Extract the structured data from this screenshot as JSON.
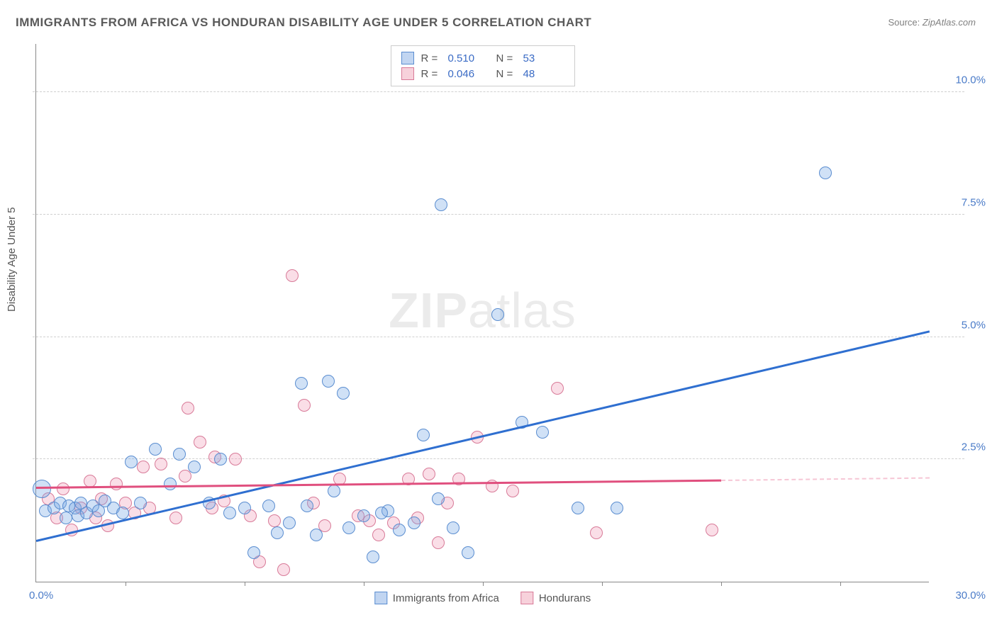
{
  "title": "IMMIGRANTS FROM AFRICA VS HONDURAN DISABILITY AGE UNDER 5 CORRELATION CHART",
  "source_prefix": "Source: ",
  "source_link": "ZipAtlas.com",
  "y_axis_label": "Disability Age Under 5",
  "watermark_bold": "ZIP",
  "watermark_rest": "atlas",
  "chart": {
    "type": "scatter",
    "xlim": [
      0,
      30
    ],
    "ylim": [
      0,
      11
    ],
    "background_color": "#ffffff",
    "grid_color": "#d0d0d0",
    "axis_color": "#888888",
    "y_ticks": [
      2.5,
      5.0,
      7.5,
      10.0
    ],
    "y_tick_labels": [
      "2.5%",
      "5.0%",
      "7.5%",
      "10.0%"
    ],
    "origin_label": "0.0%",
    "x_end_label": "30.0%",
    "x_tick_positions": [
      3,
      7,
      11,
      15,
      19,
      23,
      27
    ],
    "point_radius": 9,
    "point_radius_large": 13,
    "label_fontsize": 15,
    "title_fontsize": 17,
    "title_color": "#5a5a5a",
    "label_color": "#555555",
    "tick_label_color": "#4a7bc8"
  },
  "series": {
    "africa": {
      "label": "Immigrants from Africa",
      "color_fill": "rgba(120,170,230,0.35)",
      "color_stroke": "#5a8dd0",
      "R": "0.510",
      "N": "53",
      "trend": {
        "x1": 0,
        "y1": 0.82,
        "x2": 30,
        "y2": 5.1,
        "color": "#2f6fd0"
      },
      "points": [
        {
          "x": 0.2,
          "y": 1.9,
          "r": 13
        },
        {
          "x": 0.3,
          "y": 1.45
        },
        {
          "x": 0.6,
          "y": 1.5
        },
        {
          "x": 0.8,
          "y": 1.6
        },
        {
          "x": 1.0,
          "y": 1.3
        },
        {
          "x": 1.1,
          "y": 1.55
        },
        {
          "x": 1.3,
          "y": 1.5
        },
        {
          "x": 1.4,
          "y": 1.35
        },
        {
          "x": 1.5,
          "y": 1.6
        },
        {
          "x": 1.7,
          "y": 1.4
        },
        {
          "x": 1.9,
          "y": 1.55
        },
        {
          "x": 2.1,
          "y": 1.45
        },
        {
          "x": 2.3,
          "y": 1.65
        },
        {
          "x": 2.6,
          "y": 1.5
        },
        {
          "x": 2.9,
          "y": 1.4
        },
        {
          "x": 3.2,
          "y": 2.45
        },
        {
          "x": 3.5,
          "y": 1.6
        },
        {
          "x": 4.0,
          "y": 2.7
        },
        {
          "x": 4.5,
          "y": 2.0
        },
        {
          "x": 4.8,
          "y": 2.6
        },
        {
          "x": 5.3,
          "y": 2.35
        },
        {
          "x": 5.8,
          "y": 1.6
        },
        {
          "x": 6.2,
          "y": 2.5
        },
        {
          "x": 6.5,
          "y": 1.4
        },
        {
          "x": 7.0,
          "y": 1.5
        },
        {
          "x": 7.3,
          "y": 0.6
        },
        {
          "x": 7.8,
          "y": 1.55
        },
        {
          "x": 8.1,
          "y": 1.0
        },
        {
          "x": 8.5,
          "y": 1.2
        },
        {
          "x": 8.9,
          "y": 4.05
        },
        {
          "x": 9.1,
          "y": 1.55
        },
        {
          "x": 9.4,
          "y": 0.95
        },
        {
          "x": 9.8,
          "y": 4.1
        },
        {
          "x": 10.0,
          "y": 1.85
        },
        {
          "x": 10.3,
          "y": 3.85
        },
        {
          "x": 10.5,
          "y": 1.1
        },
        {
          "x": 11.0,
          "y": 1.35
        },
        {
          "x": 11.3,
          "y": 0.5
        },
        {
          "x": 11.8,
          "y": 1.45
        },
        {
          "x": 12.2,
          "y": 1.05
        },
        {
          "x": 12.7,
          "y": 1.2
        },
        {
          "x": 13.0,
          "y": 3.0
        },
        {
          "x": 13.5,
          "y": 1.7
        },
        {
          "x": 13.6,
          "y": 7.7
        },
        {
          "x": 14.0,
          "y": 1.1
        },
        {
          "x": 14.5,
          "y": 0.6
        },
        {
          "x": 15.5,
          "y": 5.45
        },
        {
          "x": 16.3,
          "y": 3.25
        },
        {
          "x": 17.0,
          "y": 3.05
        },
        {
          "x": 18.2,
          "y": 1.5
        },
        {
          "x": 19.5,
          "y": 1.5
        },
        {
          "x": 26.5,
          "y": 8.35
        },
        {
          "x": 11.6,
          "y": 1.4
        }
      ]
    },
    "hondurans": {
      "label": "Hondurans",
      "color_fill": "rgba(240,160,185,0.35)",
      "color_stroke": "#d87a98",
      "R": "0.046",
      "N": "48",
      "trend_solid": {
        "x1": 0,
        "y1": 1.9,
        "x2": 23,
        "y2": 2.05,
        "color": "#e04f7e"
      },
      "trend_dashed": {
        "x1": 23,
        "y1": 2.05,
        "x2": 30,
        "y2": 2.1
      },
      "points": [
        {
          "x": 0.4,
          "y": 1.7
        },
        {
          "x": 0.7,
          "y": 1.3
        },
        {
          "x": 0.9,
          "y": 1.9
        },
        {
          "x": 1.2,
          "y": 1.05
        },
        {
          "x": 1.5,
          "y": 1.5
        },
        {
          "x": 1.8,
          "y": 2.05
        },
        {
          "x": 2.0,
          "y": 1.3
        },
        {
          "x": 2.2,
          "y": 1.7
        },
        {
          "x": 2.4,
          "y": 1.15
        },
        {
          "x": 2.7,
          "y": 2.0
        },
        {
          "x": 3.0,
          "y": 1.6
        },
        {
          "x": 3.3,
          "y": 1.4
        },
        {
          "x": 3.6,
          "y": 2.35
        },
        {
          "x": 3.8,
          "y": 1.5
        },
        {
          "x": 4.2,
          "y": 2.4
        },
        {
          "x": 4.7,
          "y": 1.3
        },
        {
          "x": 5.0,
          "y": 2.15
        },
        {
          "x": 5.1,
          "y": 3.55
        },
        {
          "x": 5.5,
          "y": 2.85
        },
        {
          "x": 5.9,
          "y": 1.5
        },
        {
          "x": 6.0,
          "y": 2.55
        },
        {
          "x": 6.3,
          "y": 1.65
        },
        {
          "x": 6.7,
          "y": 2.5
        },
        {
          "x": 7.2,
          "y": 1.35
        },
        {
          "x": 7.5,
          "y": 0.4
        },
        {
          "x": 8.0,
          "y": 1.25
        },
        {
          "x": 8.3,
          "y": 0.25
        },
        {
          "x": 8.6,
          "y": 6.25
        },
        {
          "x": 9.0,
          "y": 3.6
        },
        {
          "x": 9.3,
          "y": 1.6
        },
        {
          "x": 9.7,
          "y": 1.15
        },
        {
          "x": 10.2,
          "y": 2.1
        },
        {
          "x": 10.8,
          "y": 1.35
        },
        {
          "x": 11.2,
          "y": 1.25
        },
        {
          "x": 11.5,
          "y": 0.95
        },
        {
          "x": 12.0,
          "y": 1.2
        },
        {
          "x": 12.5,
          "y": 2.1
        },
        {
          "x": 12.8,
          "y": 1.3
        },
        {
          "x": 13.2,
          "y": 2.2
        },
        {
          "x": 13.8,
          "y": 1.6
        },
        {
          "x": 14.2,
          "y": 2.1
        },
        {
          "x": 14.8,
          "y": 2.95
        },
        {
          "x": 15.3,
          "y": 1.95
        },
        {
          "x": 16.0,
          "y": 1.85
        },
        {
          "x": 17.5,
          "y": 3.95
        },
        {
          "x": 18.8,
          "y": 1.0
        },
        {
          "x": 22.7,
          "y": 1.05
        },
        {
          "x": 13.5,
          "y": 0.8
        }
      ]
    }
  },
  "legend_top": {
    "R_label": "R =",
    "N_label": "N ="
  }
}
